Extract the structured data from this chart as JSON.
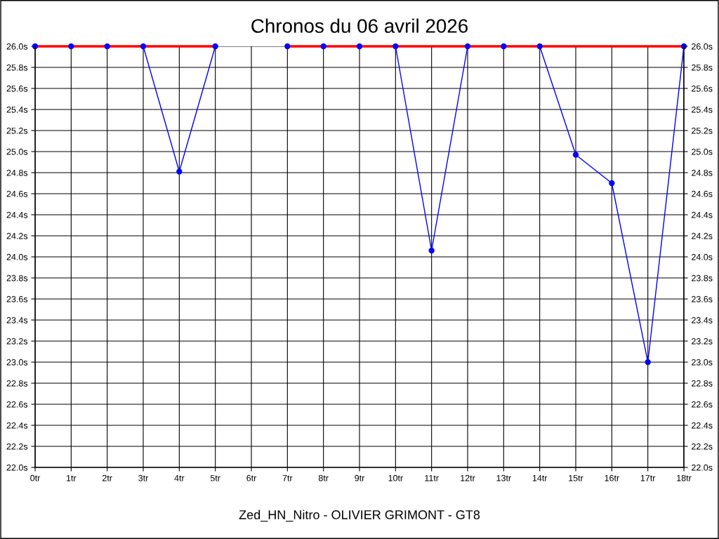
{
  "chart_data": {
    "type": "line",
    "title": "Chronos du 06 avril 2026",
    "xlabel": "Zed_HN_Nitro - OLIVIER GRIMONT - GT8",
    "x": [
      0,
      1,
      2,
      3,
      4,
      5,
      6,
      7,
      8,
      9,
      10,
      11,
      12,
      13,
      14,
      15,
      16,
      17,
      18
    ],
    "series": [
      {
        "color": "#ff0000",
        "values": [
          26.0,
          26.0,
          26.0,
          26.0,
          26.0,
          26.0,
          null,
          26.0,
          26.0,
          26.0,
          26.0,
          26.0,
          26.0,
          26.0,
          26.0,
          26.0,
          26.0,
          26.0,
          26.0
        ],
        "marker": "none"
      },
      {
        "color": "#0000ff",
        "values": [
          26.0,
          26.0,
          26.0,
          26.0,
          24.81,
          26.0,
          null,
          26.0,
          26.0,
          26.0,
          26.0,
          24.06,
          26.0,
          26.0,
          26.0,
          24.97,
          24.7,
          23.0,
          26.0
        ],
        "marker": "circle"
      }
    ],
    "xlim": [
      0,
      18
    ],
    "xticks": [
      {
        "value": 0,
        "label": "0tr"
      },
      {
        "value": 1,
        "label": "1tr"
      },
      {
        "value": 2,
        "label": "2tr"
      },
      {
        "value": 3,
        "label": "3tr"
      },
      {
        "value": 4,
        "label": "4tr"
      },
      {
        "value": 5,
        "label": "5tr"
      },
      {
        "value": 6,
        "label": "6tr"
      },
      {
        "value": 7,
        "label": "7tr"
      },
      {
        "value": 8,
        "label": "8tr"
      },
      {
        "value": 9,
        "label": "9tr"
      },
      {
        "value": 10,
        "label": "10tr"
      },
      {
        "value": 11,
        "label": "11tr"
      },
      {
        "value": 12,
        "label": "12tr"
      },
      {
        "value": 13,
        "label": "13tr"
      },
      {
        "value": 14,
        "label": "14tr"
      },
      {
        "value": 15,
        "label": "15tr"
      },
      {
        "value": 16,
        "label": "16tr"
      },
      {
        "value": 17,
        "label": "17tr"
      },
      {
        "value": 18,
        "label": "18tr"
      }
    ],
    "ylim": [
      22.0,
      26.0
    ],
    "yticks": [
      {
        "value": 22.0,
        "label": "22.0s"
      },
      {
        "value": 22.2,
        "label": "22.2s"
      },
      {
        "value": 22.4,
        "label": "22.4s"
      },
      {
        "value": 22.6,
        "label": "22.6s"
      },
      {
        "value": 22.8,
        "label": "22.8s"
      },
      {
        "value": 23.0,
        "label": "23.0s"
      },
      {
        "value": 23.2,
        "label": "23.2s"
      },
      {
        "value": 23.4,
        "label": "23.4s"
      },
      {
        "value": 23.6,
        "label": "23.6s"
      },
      {
        "value": 23.8,
        "label": "23.8s"
      },
      {
        "value": 24.0,
        "label": "24.0s"
      },
      {
        "value": 24.2,
        "label": "24.2s"
      },
      {
        "value": 24.4,
        "label": "24.4s"
      },
      {
        "value": 24.6,
        "label": "24.6s"
      },
      {
        "value": 24.8,
        "label": "24.8s"
      },
      {
        "value": 25.0,
        "label": "25.0s"
      },
      {
        "value": 25.2,
        "label": "25.2s"
      },
      {
        "value": 25.4,
        "label": "25.4s"
      },
      {
        "value": 25.6,
        "label": "25.6s"
      },
      {
        "value": 25.8,
        "label": "25.8s"
      },
      {
        "value": 26.0,
        "label": "26.0s"
      }
    ],
    "y2lim": [
      22.0,
      26.0
    ],
    "y2ticks": [
      {
        "value": 22.0,
        "label": "22.0s"
      },
      {
        "value": 22.2,
        "label": "22.2s"
      },
      {
        "value": 22.4,
        "label": "22.4s"
      },
      {
        "value": 22.6,
        "label": "22.6s"
      },
      {
        "value": 22.8,
        "label": "22.8s"
      },
      {
        "value": 23.0,
        "label": "23.0s"
      },
      {
        "value": 23.2,
        "label": "23.2s"
      },
      {
        "value": 23.4,
        "label": "23.4s"
      },
      {
        "value": 23.6,
        "label": "23.6s"
      },
      {
        "value": 23.8,
        "label": "23.8s"
      },
      {
        "value": 24.0,
        "label": "24.0s"
      },
      {
        "value": 24.2,
        "label": "24.2s"
      },
      {
        "value": 24.4,
        "label": "24.4s"
      },
      {
        "value": 24.6,
        "label": "24.6s"
      },
      {
        "value": 24.8,
        "label": "24.8s"
      },
      {
        "value": 25.0,
        "label": "25.0s"
      },
      {
        "value": 25.2,
        "label": "25.2s"
      },
      {
        "value": 25.4,
        "label": "25.4s"
      },
      {
        "value": 25.6,
        "label": "25.6s"
      },
      {
        "value": 25.8,
        "label": "25.8s"
      },
      {
        "value": 26.0,
        "label": "26.0s"
      }
    ],
    "grid": true,
    "line_style": "solid"
  }
}
